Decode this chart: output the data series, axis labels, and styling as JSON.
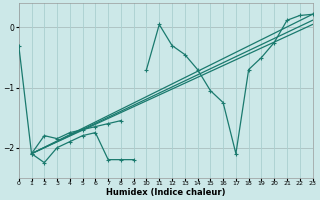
{
  "xlabel": "Humidex (Indice chaleur)",
  "background_color": "#cce8e8",
  "grid_color": "#aacfcf",
  "red_line_color": "#cc8888",
  "line_color": "#1a7a6e",
  "xlim": [
    0,
    23
  ],
  "ylim": [
    -2.5,
    0.4
  ],
  "yticks": [
    0,
    -1,
    -2
  ],
  "xticks": [
    0,
    1,
    2,
    3,
    4,
    5,
    6,
    7,
    8,
    9,
    10,
    11,
    12,
    13,
    14,
    15,
    16,
    17,
    18,
    19,
    20,
    21,
    22,
    23
  ],
  "series1_x": [
    0,
    1,
    2,
    3,
    4,
    5,
    6,
    7,
    8,
    9,
    10,
    11,
    12,
    13,
    14,
    15,
    16,
    17,
    18,
    19,
    20,
    21,
    22,
    23
  ],
  "series1_y": [
    -0.3,
    -2.1,
    -1.8,
    -1.85,
    -1.75,
    -1.7,
    -1.65,
    -1.6,
    -1.55,
    null,
    -0.7,
    0.05,
    -0.3,
    -0.45,
    -0.7,
    -1.05,
    -1.25,
    -2.1,
    -0.7,
    -0.5,
    -0.25,
    0.12,
    0.2,
    0.22
  ],
  "series2_x": [
    1,
    2,
    3,
    4,
    5,
    6,
    7,
    8,
    9
  ],
  "series2_y": [
    -2.1,
    -2.25,
    -2.0,
    -1.9,
    -1.8,
    -1.75,
    -2.2,
    -2.2,
    -2.2
  ],
  "line1_x": [
    1,
    23
  ],
  "line1_y": [
    -2.1,
    0.22
  ],
  "line2_x": [
    1,
    23
  ],
  "line2_y": [
    -2.1,
    0.12
  ],
  "line3_x": [
    1,
    23
  ],
  "line3_y": [
    -2.1,
    0.05
  ]
}
